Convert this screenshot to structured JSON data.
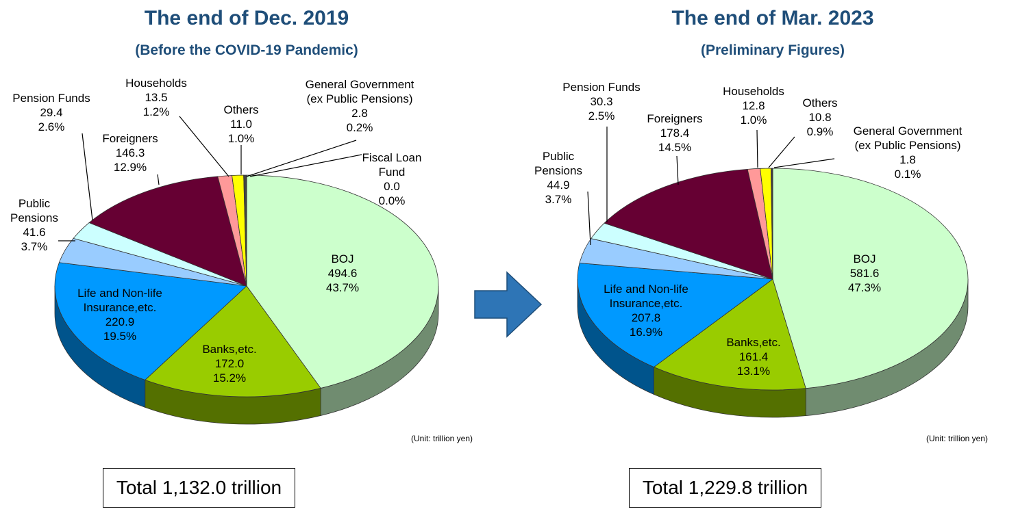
{
  "chart_data": [
    {
      "type": "pie",
      "title": "The end of Dec. 2019",
      "subtitle": "(Before the COVID-19 Pandemic)",
      "categories": [
        "BOJ",
        "Banks,etc.",
        "Life and Non-life\nInsurance,etc.",
        "Public\nPensions",
        "Pension Funds",
        "Foreigners",
        "Households",
        "Others",
        "General Government\n(ex Public Pensions)",
        "Fiscal Loan\nFund"
      ],
      "values": [
        494.6,
        172.0,
        220.9,
        41.6,
        29.4,
        146.3,
        13.5,
        11.0,
        2.8,
        0.0
      ],
      "value_labels": [
        "494.6",
        "172.0",
        "220.9",
        "41.6",
        "29.4",
        "146.3",
        "13.5",
        "11.0",
        "2.8",
        "0.0"
      ],
      "shares": [
        "43.7%",
        "15.2%",
        "19.5%",
        "3.7%",
        "2.6%",
        "12.9%",
        "1.2%",
        "1.0%",
        "0.2%",
        "0.0%"
      ],
      "colors": [
        "#ccffcc",
        "#99cc00",
        "#0099ff",
        "#99ccff",
        "#ccffff",
        "#660033",
        "#ff9999",
        "#ffff00",
        "#444444",
        "#ffffff"
      ],
      "note": "(Unit: trillion yen)",
      "total": "Total 1,132.0 trillion yen"
    },
    {
      "type": "pie",
      "title": "The end of Mar. 2023",
      "subtitle": "(Preliminary Figures)",
      "categories": [
        "BOJ",
        "Banks,etc.",
        "Life and Non-life\nInsurance,etc.",
        "Public\nPensions",
        "Pension Funds",
        "Foreigners",
        "Households",
        "Others",
        "General Government\n(ex Public Pensions)"
      ],
      "values": [
        581.6,
        161.4,
        207.8,
        44.9,
        30.3,
        178.4,
        12.8,
        10.8,
        1.8
      ],
      "value_labels": [
        "581.6",
        "161.4",
        "207.8",
        "44.9",
        "30.3",
        "178.4",
        "12.8",
        "10.8",
        "1.8"
      ],
      "shares": [
        "47.3%",
        "13.1%",
        "16.9%",
        "3.7%",
        "2.5%",
        "14.5%",
        "1.0%",
        "0.9%",
        "0.1%"
      ],
      "colors": [
        "#ccffcc",
        "#99cc00",
        "#0099ff",
        "#99ccff",
        "#ccffff",
        "#660033",
        "#ff9999",
        "#ffff00",
        "#444444"
      ],
      "note": "(Unit: trillion yen)",
      "total": "Total 1,229.8 trillion yen"
    }
  ]
}
